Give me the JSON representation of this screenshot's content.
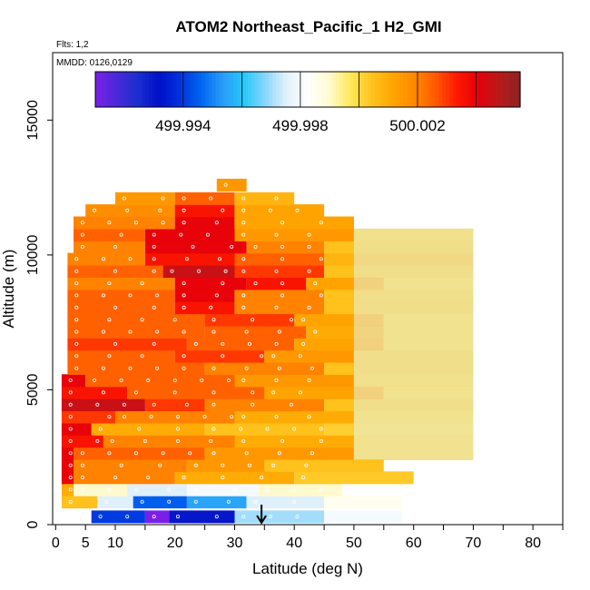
{
  "chart_data": {
    "type": "heatmap",
    "title": "ATOM2 Northeast_Pacific_1 H2_GMI",
    "flights_label": "Flts: 1,2",
    "dates_label": "MMDD: 0126,0129",
    "xlabel": "Latitude (deg N)",
    "ylabel": "Altitude (m)",
    "xlim": [
      -0.5,
      85
    ],
    "ylim": [
      0,
      17500
    ],
    "x_ticks": [
      0,
      5,
      10,
      20,
      30,
      40,
      50,
      60,
      70,
      80
    ],
    "x_tick_labels": [
      "0",
      "5",
      "10",
      "20",
      "30",
      "40",
      "50",
      "60",
      "70",
      "80"
    ],
    "y_ticks": [
      0,
      5000,
      10000,
      15000
    ],
    "y_tick_labels": [
      "0",
      "5000",
      "10000",
      "15000"
    ],
    "colorbar": {
      "min": 499.991,
      "max": 500.0055,
      "tick_values": [
        499.994,
        499.998,
        500.002
      ],
      "tick_labels": [
        "499.994",
        "499.998",
        "500.002"
      ],
      "colors": [
        "#7b1fe8",
        "#4a2ad8",
        "#1a2fd0",
        "#0010c8",
        "#0033dd",
        "#0066f0",
        "#2a9cf8",
        "#24c8fa",
        "#8ad6fa",
        "#e2f1fb",
        "#ffffff",
        "#fffbd2",
        "#ffe95a",
        "#ffc41f",
        "#ffa500",
        "#ff8a00",
        "#ff5a00",
        "#ff1a00",
        "#e6000a",
        "#b81a1a",
        "#8c2323"
      ]
    },
    "arrow_latitude": 34.5,
    "bands": [
      {
        "alt": 300,
        "segments": [
          [
            6,
            15,
            499.994
          ],
          [
            15,
            19,
            499.991
          ],
          [
            19,
            30,
            499.993
          ],
          [
            30,
            45,
            499.997
          ],
          [
            45,
            58,
            499.998
          ]
        ]
      },
      {
        "alt": 850,
        "segments": [
          [
            1,
            7,
            500.0005
          ],
          [
            7,
            13,
            499.9975
          ],
          [
            13,
            22,
            499.9945
          ],
          [
            22,
            32,
            499.9955
          ],
          [
            32,
            45,
            499.9975
          ],
          [
            45,
            58,
            499.9985
          ]
        ]
      },
      {
        "alt": 1300,
        "segments": [
          [
            1,
            3,
            500.001
          ],
          [
            3,
            12,
            499.999
          ],
          [
            12,
            22,
            499.9975
          ],
          [
            22,
            34,
            499.998
          ],
          [
            34,
            48,
            499.999
          ]
        ]
      },
      {
        "alt": 1750,
        "segments": [
          [
            1,
            3,
            500.004
          ],
          [
            3,
            20,
            500.002
          ],
          [
            20,
            40,
            500.001
          ],
          [
            40,
            60,
            500.0003
          ]
        ]
      },
      {
        "alt": 2200,
        "segments": [
          [
            1,
            3,
            500.004
          ],
          [
            3,
            22,
            500.002
          ],
          [
            22,
            35,
            500.0015
          ],
          [
            35,
            55,
            500.0005
          ]
        ]
      },
      {
        "alt": 2650,
        "segments": [
          [
            1,
            3,
            500.004
          ],
          [
            3,
            25,
            500.0025
          ],
          [
            25,
            50,
            500.0015
          ],
          [
            50,
            70,
            500.0003
          ]
        ]
      },
      {
        "alt": 3100,
        "segments": [
          [
            1,
            8,
            500.0035
          ],
          [
            8,
            30,
            500.002
          ],
          [
            30,
            50,
            500.001
          ],
          [
            50,
            70,
            500.0003
          ]
        ]
      },
      {
        "alt": 3550,
        "segments": [
          [
            1,
            6,
            500.004
          ],
          [
            6,
            25,
            500.001
          ],
          [
            25,
            45,
            500.0005
          ],
          [
            45,
            70,
            500.0002
          ]
        ]
      },
      {
        "alt": 4000,
        "segments": [
          [
            1,
            10,
            500.003
          ],
          [
            10,
            30,
            500.002
          ],
          [
            30,
            50,
            500.001
          ],
          [
            50,
            70,
            500.0003
          ]
        ]
      },
      {
        "alt": 4450,
        "segments": [
          [
            1,
            15,
            500.0045
          ],
          [
            15,
            25,
            500.003
          ],
          [
            25,
            45,
            500.002
          ],
          [
            45,
            70,
            500.0005
          ]
        ]
      },
      {
        "alt": 4900,
        "segments": [
          [
            1,
            12,
            500.0035
          ],
          [
            12,
            35,
            500.0025
          ],
          [
            35,
            55,
            500.0012
          ],
          [
            55,
            70,
            500.0003
          ]
        ]
      },
      {
        "alt": 5350,
        "segments": [
          [
            1,
            5,
            500.004
          ],
          [
            5,
            30,
            500.0025
          ],
          [
            30,
            50,
            500.0015
          ],
          [
            50,
            70,
            500.0004
          ]
        ]
      },
      {
        "alt": 5800,
        "segments": [
          [
            2,
            25,
            500.0025
          ],
          [
            25,
            45,
            500.002
          ],
          [
            45,
            70,
            500.0005
          ]
        ]
      },
      {
        "alt": 6250,
        "segments": [
          [
            2,
            20,
            500.0025
          ],
          [
            20,
            35,
            500.003
          ],
          [
            35,
            50,
            500.0015
          ],
          [
            50,
            70,
            500.0005
          ]
        ]
      },
      {
        "alt": 6700,
        "segments": [
          [
            2,
            22,
            500.003
          ],
          [
            22,
            40,
            500.0025
          ],
          [
            40,
            55,
            500.0012
          ],
          [
            55,
            70,
            500.0003
          ]
        ]
      },
      {
        "alt": 7150,
        "segments": [
          [
            2,
            25,
            500.0025
          ],
          [
            25,
            42,
            500.0025
          ],
          [
            42,
            55,
            500.001
          ],
          [
            55,
            70,
            500.0003
          ]
        ]
      },
      {
        "alt": 7600,
        "segments": [
          [
            2,
            25,
            500.0025
          ],
          [
            25,
            40,
            500.003
          ],
          [
            40,
            55,
            500.0012
          ],
          [
            55,
            70,
            500.0003
          ]
        ]
      },
      {
        "alt": 8050,
        "segments": [
          [
            2,
            20,
            500.0025
          ],
          [
            20,
            30,
            500.0035
          ],
          [
            30,
            45,
            500.002
          ],
          [
            45,
            70,
            500.0005
          ]
        ]
      },
      {
        "alt": 8500,
        "segments": [
          [
            2,
            20,
            500.0025
          ],
          [
            20,
            30,
            500.004
          ],
          [
            30,
            45,
            500.002
          ],
          [
            45,
            70,
            500.0005
          ]
        ]
      },
      {
        "alt": 8950,
        "segments": [
          [
            2,
            20,
            500.002
          ],
          [
            20,
            32,
            500.004
          ],
          [
            32,
            42,
            500.0035
          ],
          [
            42,
            55,
            500.0012
          ],
          [
            55,
            70,
            500.0003
          ]
        ]
      },
      {
        "alt": 9400,
        "segments": [
          [
            2,
            18,
            500.0025
          ],
          [
            18,
            30,
            500.0045
          ],
          [
            30,
            45,
            500.003
          ],
          [
            45,
            70,
            500.0005
          ]
        ]
      },
      {
        "alt": 9850,
        "segments": [
          [
            2,
            15,
            500.002
          ],
          [
            15,
            30,
            500.0035
          ],
          [
            30,
            45,
            500.0025
          ],
          [
            45,
            70,
            500.0008
          ]
        ]
      },
      {
        "alt": 10300,
        "segments": [
          [
            3,
            15,
            500.002
          ],
          [
            15,
            32,
            500.004
          ],
          [
            32,
            45,
            500.002
          ],
          [
            45,
            70,
            500.0005
          ]
        ]
      },
      {
        "alt": 10750,
        "segments": [
          [
            3,
            15,
            500.0025
          ],
          [
            15,
            30,
            500.004
          ],
          [
            30,
            50,
            500.0015
          ],
          [
            50,
            70,
            500.0004
          ]
        ]
      },
      {
        "alt": 11200,
        "segments": [
          [
            3,
            20,
            500.002
          ],
          [
            20,
            30,
            500.004
          ],
          [
            30,
            50,
            500.0012
          ]
        ]
      },
      {
        "alt": 11650,
        "segments": [
          [
            5,
            20,
            500.0018
          ],
          [
            20,
            30,
            500.0035
          ],
          [
            30,
            45,
            500.0012
          ]
        ]
      },
      {
        "alt": 12100,
        "segments": [
          [
            10,
            20,
            500.0015
          ],
          [
            20,
            30,
            500.0025
          ],
          [
            30,
            40,
            500.0008
          ]
        ]
      },
      {
        "alt": 12600,
        "segments": [
          [
            27,
            32,
            500.0015
          ]
        ]
      }
    ]
  }
}
